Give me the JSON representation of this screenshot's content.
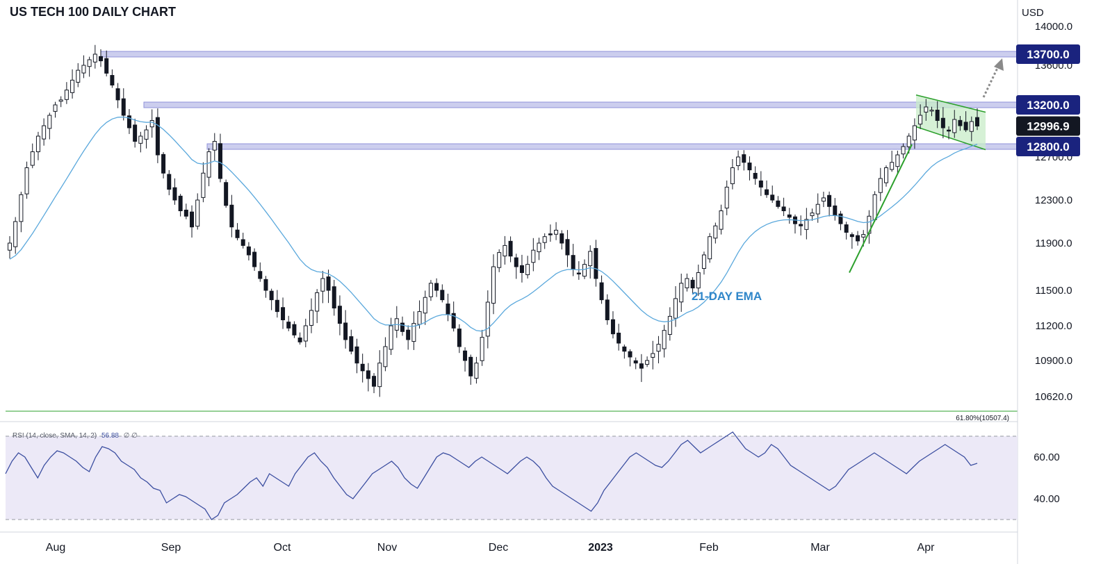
{
  "title": "US TECH 100 DAILY CHART",
  "currency": "USD",
  "colors": {
    "candle": "#131722",
    "ema": "#5aa8dc",
    "level_band": "#8f92d9",
    "level_badge": "#1a237e",
    "last_badge": "#131722",
    "fib": "#2ca02c",
    "trend": "#2ca02c",
    "channel_fill": "#c8ecc8",
    "rsi": "#3b4ea0",
    "rsi_band": "#ece9f7",
    "arrow": "#8a8a8a"
  },
  "price_ticks": [
    "14000.0",
    "13600.0",
    "12700.0",
    "12300.0",
    "11900.0",
    "11500.0",
    "11200.0",
    "10900.0",
    "10620.0"
  ],
  "price_levels": [
    {
      "label": "13700.0",
      "value": 13700
    },
    {
      "label": "13200.0",
      "value": 13200
    },
    {
      "label": "12800.0",
      "value": 12800
    }
  ],
  "last_price": {
    "label": "12996.9",
    "value": 12996.9
  },
  "fib": {
    "label": "61.80%(10507.4)",
    "value": 10507.4
  },
  "ema_label": "21-DAY EMA",
  "months": [
    {
      "label": "Aug",
      "bold": false
    },
    {
      "label": "Sep",
      "bold": false
    },
    {
      "label": "Oct",
      "bold": false
    },
    {
      "label": "Nov",
      "bold": false
    },
    {
      "label": "Dec",
      "bold": false
    },
    {
      "label": "2023",
      "bold": true
    },
    {
      "label": "Feb",
      "bold": false
    },
    {
      "label": "Mar",
      "bold": false
    },
    {
      "label": "Apr",
      "bold": false
    }
  ],
  "rsi": {
    "legend": "RSI (14, close, SMA, 14, 2)",
    "legend_value": "56.88",
    "legend_extra": "∅  ∅",
    "ticks": [
      "60.00",
      "40.00"
    ],
    "upper": 70,
    "lower": 30,
    "values": [
      52,
      58,
      62,
      60,
      55,
      50,
      56,
      60,
      63,
      62,
      60,
      58,
      55,
      53,
      60,
      65,
      64,
      62,
      58,
      56,
      54,
      50,
      48,
      45,
      44,
      38,
      40,
      42,
      41,
      39,
      37,
      35,
      30,
      32,
      38,
      40,
      42,
      45,
      48,
      50,
      46,
      52,
      50,
      48,
      46,
      52,
      56,
      60,
      62,
      58,
      55,
      50,
      46,
      42,
      40,
      44,
      48,
      52,
      54,
      56,
      58,
      55,
      50,
      47,
      45,
      50,
      55,
      60,
      62,
      61,
      59,
      57,
      55,
      58,
      60,
      58,
      56,
      54,
      52,
      55,
      58,
      60,
      58,
      55,
      50,
      46,
      44,
      42,
      40,
      38,
      36,
      34,
      38,
      44,
      48,
      52,
      56,
      60,
      62,
      60,
      58,
      56,
      55,
      58,
      62,
      66,
      68,
      65,
      62,
      64,
      66,
      68,
      70,
      72,
      68,
      64,
      62,
      60,
      62,
      66,
      64,
      60,
      56,
      54,
      52,
      50,
      48,
      46,
      44,
      46,
      50,
      54,
      56,
      58,
      60,
      62,
      60,
      58,
      56,
      54,
      52,
      55,
      58,
      60,
      62,
      64,
      66,
      64,
      62,
      60,
      56,
      57
    ],
    "last": 56.88
  },
  "chart_data": {
    "type": "candlestick",
    "title": "US TECH 100 DAILY CHART",
    "ylabel": "USD",
    "ylim": [
      10450,
      14080
    ],
    "x_categories": [
      "Aug",
      "Sep",
      "Oct",
      "Nov",
      "Dec",
      "2023",
      "Feb",
      "Mar",
      "Apr"
    ],
    "close_series_approx": [
      11900,
      12100,
      12350,
      12600,
      12750,
      12900,
      13000,
      13100,
      13200,
      13250,
      13350,
      13450,
      13550,
      13600,
      13650,
      13700,
      13640,
      13520,
      13400,
      13250,
      13100,
      12980,
      12850,
      12900,
      12960,
      13050,
      12720,
      12550,
      12400,
      12300,
      12200,
      12150,
      12050,
      12300,
      12550,
      12750,
      12850,
      12500,
      12250,
      12050,
      11950,
      11880,
      11800,
      11700,
      11600,
      11500,
      11420,
      11320,
      11250,
      11180,
      11120,
      11060,
      11200,
      11330,
      11480,
      11600,
      11500,
      11350,
      11220,
      11080,
      10980,
      10880,
      10820,
      10760,
      10700,
      10880,
      11020,
      11200,
      11260,
      11150,
      11080,
      11220,
      11320,
      11440,
      11560,
      11500,
      11420,
      11300,
      11180,
      11020,
      10900,
      10780,
      10880,
      11100,
      11400,
      11700,
      11820,
      11880,
      11790,
      11700,
      11650,
      11720,
      11840,
      11900,
      11960,
      11980,
      12020,
      11900,
      11800,
      11680,
      11640,
      11720,
      11830,
      11600,
      11420,
      11250,
      11130,
      11050,
      10980,
      10930,
      10880,
      10840,
      10900,
      10960,
      11040,
      11160,
      11280,
      11430,
      11560,
      11600,
      11520,
      11650,
      11800,
      11960,
      12060,
      12200,
      12420,
      12600,
      12700,
      12650,
      12580,
      12500,
      12420,
      12350,
      12300,
      12240,
      12200,
      12140,
      12080,
      12060,
      12120,
      12180,
      12260,
      12320,
      12240,
      12160,
      12080,
      12000,
      11960,
      11920,
      11980,
      12150,
      12350,
      12500,
      12600,
      12650,
      12720,
      12800,
      12900,
      13000,
      13100,
      13180,
      13150,
      13050,
      12980,
      12950,
      13060,
      13000,
      12960,
      13040,
      12996.9
    ],
    "levels": [
      13700,
      13200,
      12800
    ],
    "last_price": 12996.9,
    "fib_level": {
      "label": "61.80%(10507.4)",
      "value": 10507.4
    },
    "ema_period": 21,
    "rsi": {
      "period": 14,
      "last": 56.88,
      "bands": [
        30,
        70
      ]
    }
  }
}
